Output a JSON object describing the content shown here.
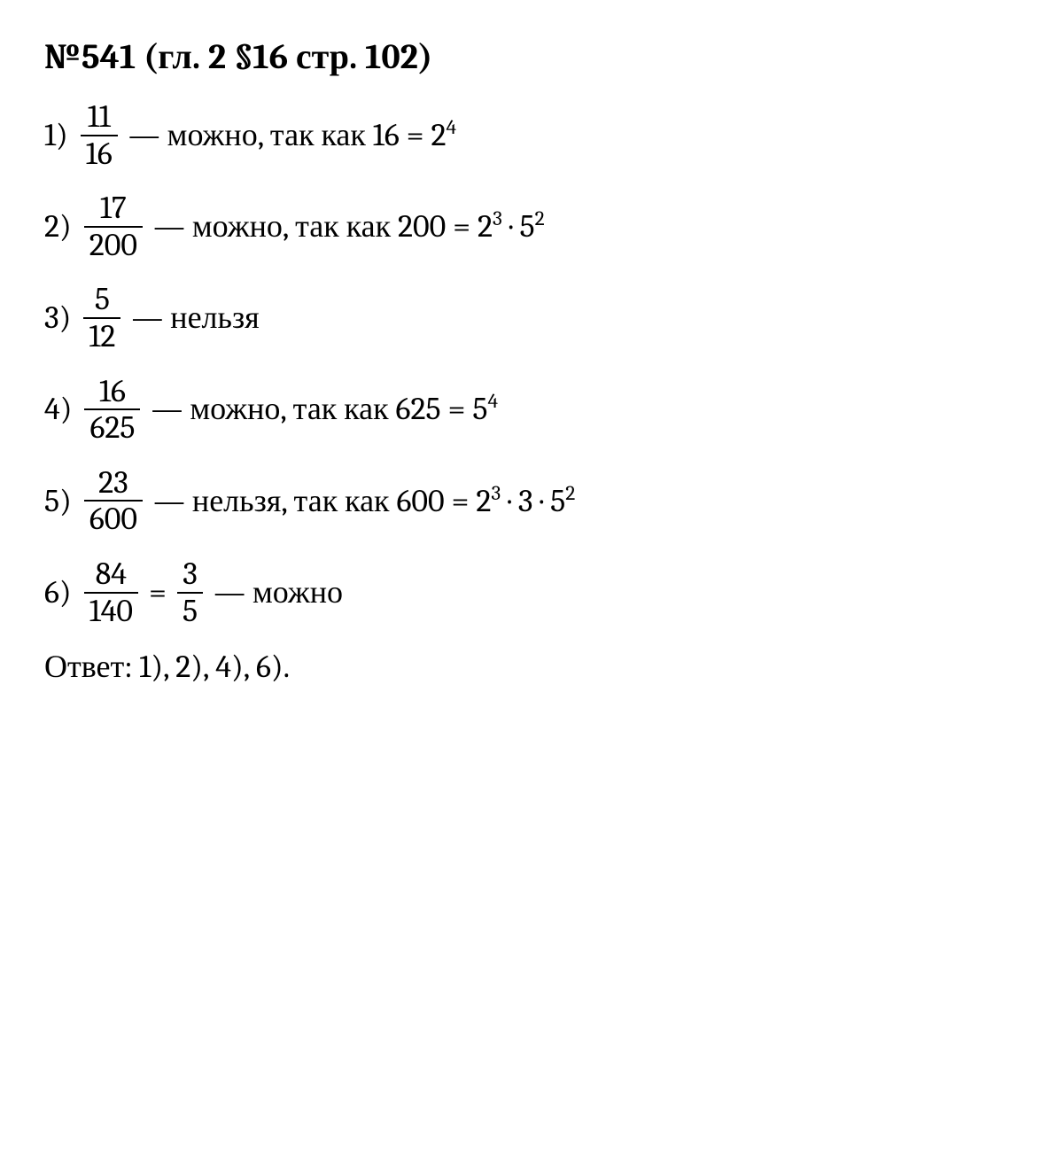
{
  "title": "№541 (гл. 2 §16 стр. 102)",
  "problems": [
    {
      "n": "1)",
      "frac_num": "11",
      "frac_den": "16",
      "text_before": "— можно, так как 16 = 2",
      "sup1": "4",
      "text_mid": "",
      "sup2": "",
      "text_after": ""
    },
    {
      "n": "2)",
      "frac_num": "17",
      "frac_den": "200",
      "text_before": "— можно, так как 200 = 2",
      "sup1": "3",
      "text_mid": " · 5",
      "sup2": "2",
      "text_after": ""
    },
    {
      "n": "3)",
      "frac_num": "5",
      "frac_den": "12",
      "text_before": "— нельзя",
      "sup1": "",
      "text_mid": "",
      "sup2": "",
      "text_after": ""
    },
    {
      "n": "4)",
      "frac_num": "16",
      "frac_den": "625",
      "text_before": "— можно, так как 625 = 5",
      "sup1": "4",
      "text_mid": "",
      "sup2": "",
      "text_after": ""
    },
    {
      "n": "5)",
      "frac_num": "23",
      "frac_den": "600",
      "text_before": "— нельзя, так как 600 = 2",
      "sup1": "3",
      "text_mid": " · 3 · 5",
      "sup2": "2",
      "text_after": ""
    }
  ],
  "problem6": {
    "n": "6)",
    "frac1_num": "84",
    "frac1_den": "140",
    "eq": "=",
    "frac2_num": "3",
    "frac2_den": "5",
    "text": "— можно"
  },
  "answer": "Ответ: 1), 2), 4), 6).",
  "colors": {
    "text": "#000000",
    "background": "#ffffff"
  },
  "typography": {
    "base_fontsize": 36,
    "title_fontsize": 40,
    "font_family": "Cambria/Georgia serif"
  }
}
